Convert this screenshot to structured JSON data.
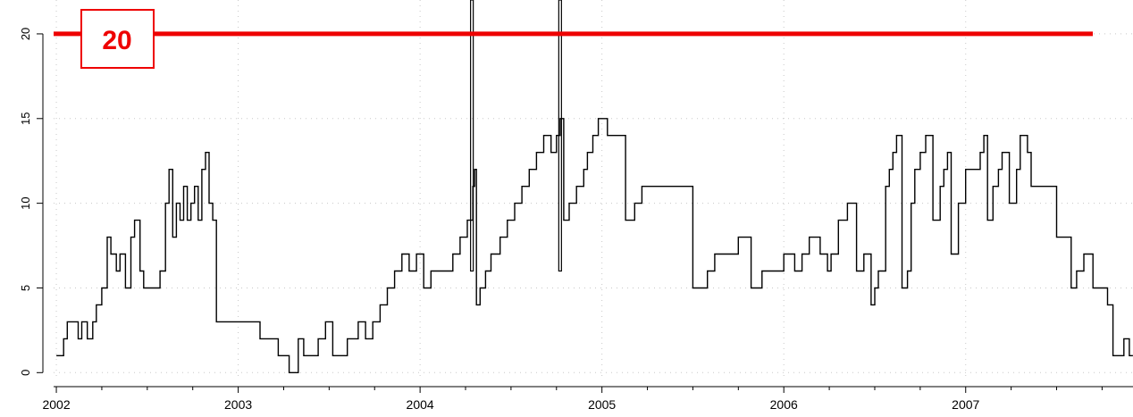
{
  "chart_data": {
    "type": "line",
    "step": true,
    "title": "",
    "xlabel": "",
    "ylabel": "",
    "xlim": [
      2001.985,
      2007.92
    ],
    "ylim": [
      -0.3,
      22
    ],
    "x_ticks": [
      2002,
      2003,
      2004,
      2005,
      2006,
      2007
    ],
    "x_tick_labels": [
      "2002",
      "2003",
      "2004",
      "2005",
      "2006",
      "2007"
    ],
    "y_ticks": [
      0,
      5,
      10,
      15,
      20
    ],
    "y_tick_labels": [
      "0",
      "5",
      "10",
      "15",
      "20"
    ],
    "grid": true,
    "threshold": {
      "value": 20,
      "label": "20",
      "color": "#ee0000"
    },
    "series_color": "#000000",
    "series": [
      {
        "x": [
          2002.0,
          2002.04,
          2002.06,
          2002.12,
          2002.14,
          2002.17,
          2002.2,
          2002.22,
          2002.25,
          2002.28,
          2002.3,
          2002.33,
          2002.35,
          2002.38,
          2002.41,
          2002.43,
          2002.46,
          2002.48,
          2002.5,
          2002.55,
          2002.57,
          2002.6,
          2002.62,
          2002.64,
          2002.66,
          2002.68,
          2002.7,
          2002.72,
          2002.74,
          2002.76,
          2002.78,
          2002.8,
          2002.82,
          2002.84,
          2002.86,
          2002.88,
          2002.93,
          2002.96,
          2003.0,
          2003.12,
          2003.22,
          2003.28,
          2003.33,
          2003.36,
          2003.44,
          2003.48,
          2003.52,
          2003.55,
          2003.6,
          2003.66,
          2003.7,
          2003.74,
          2003.78,
          2003.82,
          2003.86,
          2003.9,
          2003.94,
          2003.98,
          2004.02,
          2004.06,
          2004.1,
          2004.14,
          2004.18,
          2004.22,
          2004.26,
          2004.29,
          2004.3,
          2004.31,
          2004.33,
          2004.36,
          2004.39,
          2004.44,
          2004.48,
          2004.52,
          2004.56,
          2004.6,
          2004.64,
          2004.68,
          2004.72,
          2004.75,
          2004.77,
          2004.79,
          2004.82,
          2004.86,
          2004.9,
          2004.92,
          2004.95,
          2004.98,
          2005.03,
          2005.08,
          2005.13,
          2005.18,
          2005.22,
          2005.26,
          2005.5,
          2005.53,
          2005.58,
          2005.62,
          2005.75,
          2005.78,
          2005.82,
          2005.88,
          2005.94,
          2006.0,
          2006.06,
          2006.1,
          2006.14,
          2006.2,
          2006.24,
          2006.26,
          2006.3,
          2006.35,
          2006.4,
          2006.44,
          2006.48,
          2006.5,
          2006.52,
          2006.56,
          2006.58,
          2006.6,
          2006.62,
          2006.65,
          2006.68,
          2006.7,
          2006.72,
          2006.75,
          2006.78,
          2006.82,
          2006.86,
          2006.88,
          2006.9,
          2006.92,
          2006.96,
          2007.0,
          2007.04,
          2007.08,
          2007.1,
          2007.12,
          2007.15,
          2007.18,
          2007.2,
          2007.24,
          2007.28,
          2007.3,
          2007.34,
          2007.36,
          2007.5,
          2007.58,
          2007.61,
          2007.65,
          2007.7,
          2007.78,
          2007.81,
          2007.87,
          2007.9
        ],
        "y": [
          1,
          2,
          3,
          2,
          3,
          2,
          3,
          4,
          5,
          8,
          7,
          6,
          7,
          5,
          8,
          9,
          6,
          5,
          5,
          5,
          6,
          10,
          12,
          8,
          10,
          9,
          11,
          9,
          10,
          11,
          9,
          12,
          13,
          10,
          9,
          3,
          3,
          3,
          3,
          2,
          1,
          0,
          2,
          1,
          2,
          3,
          1,
          1,
          2,
          3,
          2,
          3,
          4,
          5,
          6,
          7,
          6,
          7,
          5,
          6,
          6,
          6,
          7,
          8,
          9,
          11,
          12,
          4,
          5,
          6,
          7,
          8,
          9,
          10,
          11,
          12,
          13,
          14,
          13,
          14,
          15,
          9,
          10,
          11,
          12,
          13,
          14,
          15,
          14,
          14,
          9,
          10,
          11,
          11,
          5,
          5,
          6,
          7,
          8,
          8,
          5,
          6,
          6,
          7,
          6,
          7,
          8,
          7,
          6,
          7,
          9,
          10,
          6,
          7,
          4,
          5,
          6,
          11,
          12,
          13,
          14,
          5,
          6,
          10,
          12,
          13,
          14,
          9,
          11,
          12,
          13,
          7,
          10,
          12,
          12,
          13,
          14,
          9,
          11,
          12,
          13,
          10,
          12,
          14,
          13,
          11,
          8,
          5,
          6,
          7,
          5,
          4,
          1,
          2,
          1
        ]
      }
    ],
    "spikes": [
      {
        "x": 2004.285,
        "y_top": 22
      },
      {
        "x": 2004.77,
        "y_top": 22
      }
    ]
  }
}
